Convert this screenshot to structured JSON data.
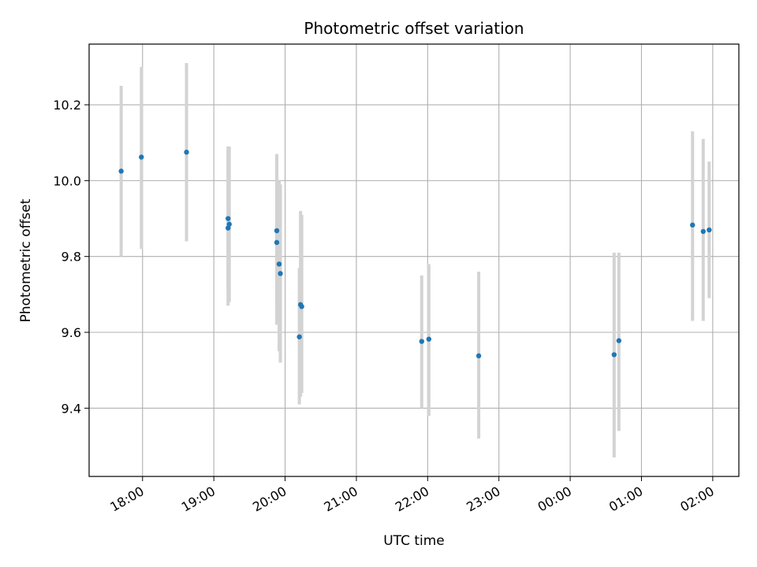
{
  "chart_data": {
    "type": "scatter",
    "title": "Photometric offset variation",
    "xlabel": "UTC time",
    "ylabel": "Photometric offset",
    "x_unit": "UTC datetime",
    "xlim": [
      "2021-01-01T17:15",
      "2021-01-02T02:22"
    ],
    "ylim": [
      9.22,
      10.36
    ],
    "x_ticks": [
      {
        "label": "18:00",
        "value": "2021-01-01T18:00"
      },
      {
        "label": "19:00",
        "value": "2021-01-01T19:00"
      },
      {
        "label": "20:00",
        "value": "2021-01-01T20:00"
      },
      {
        "label": "21:00",
        "value": "2021-01-01T21:00"
      },
      {
        "label": "22:00",
        "value": "2021-01-01T22:00"
      },
      {
        "label": "23:00",
        "value": "2021-01-01T23:00"
      },
      {
        "label": "00:00",
        "value": "2021-01-02T00:00"
      },
      {
        "label": "01:00",
        "value": "2021-01-02T01:00"
      },
      {
        "label": "02:00",
        "value": "2021-01-02T02:00"
      }
    ],
    "y_ticks": [
      {
        "label": "9.4",
        "value": 9.4
      },
      {
        "label": "9.6",
        "value": 9.6
      },
      {
        "label": "9.8",
        "value": 9.8
      },
      {
        "label": "10.0",
        "value": 10.0
      },
      {
        "label": "10.2",
        "value": 10.2
      }
    ],
    "grid": true,
    "x_tick_rotation": 30,
    "colors": {
      "point": "#1f77b4",
      "errorbar": "#d3d3d3",
      "grid": "#b0b0b0"
    },
    "points": [
      {
        "x": "2021-01-01T17:42",
        "y": 10.025,
        "y_low": 9.8,
        "y_high": 10.25
      },
      {
        "x": "2021-01-01T17:59",
        "y": 10.062,
        "y_low": 9.82,
        "y_high": 10.3
      },
      {
        "x": "2021-01-01T18:37",
        "y": 10.075,
        "y_low": 9.84,
        "y_high": 10.31
      },
      {
        "x": "2021-01-01T19:12",
        "y": 9.875,
        "y_low": 9.67,
        "y_high": 10.09
      },
      {
        "x": "2021-01-01T19:12",
        "y": 9.9,
        "y_low": 9.7,
        "y_high": 10.08
      },
      {
        "x": "2021-01-01T19:13",
        "y": 9.885,
        "y_low": 9.68,
        "y_high": 10.09
      },
      {
        "x": "2021-01-01T19:53",
        "y": 9.868,
        "y_low": 9.67,
        "y_high": 10.07
      },
      {
        "x": "2021-01-01T19:53",
        "y": 9.837,
        "y_low": 9.62,
        "y_high": 10.05
      },
      {
        "x": "2021-01-01T19:55",
        "y": 9.78,
        "y_low": 9.55,
        "y_high": 10.0
      },
      {
        "x": "2021-01-01T19:56",
        "y": 9.755,
        "y_low": 9.52,
        "y_high": 9.99
      },
      {
        "x": "2021-01-01T20:12",
        "y": 9.588,
        "y_low": 9.41,
        "y_high": 9.77
      },
      {
        "x": "2021-01-01T20:13",
        "y": 9.673,
        "y_low": 9.43,
        "y_high": 9.92
      },
      {
        "x": "2021-01-01T20:14",
        "y": 9.668,
        "y_low": 9.44,
        "y_high": 9.91
      },
      {
        "x": "2021-01-01T21:55",
        "y": 9.576,
        "y_low": 9.4,
        "y_high": 9.75
      },
      {
        "x": "2021-01-01T22:01",
        "y": 9.582,
        "y_low": 9.38,
        "y_high": 9.78
      },
      {
        "x": "2021-01-01T22:43",
        "y": 9.538,
        "y_low": 9.32,
        "y_high": 9.76
      },
      {
        "x": "2021-01-02T00:37",
        "y": 9.541,
        "y_low": 9.27,
        "y_high": 9.81
      },
      {
        "x": "2021-01-02T00:41",
        "y": 9.578,
        "y_low": 9.34,
        "y_high": 9.81
      },
      {
        "x": "2021-01-02T01:43",
        "y": 9.883,
        "y_low": 9.63,
        "y_high": 10.13
      },
      {
        "x": "2021-01-02T01:52",
        "y": 9.866,
        "y_low": 9.63,
        "y_high": 10.11
      },
      {
        "x": "2021-01-02T01:57",
        "y": 9.87,
        "y_low": 9.69,
        "y_high": 10.05
      }
    ]
  }
}
